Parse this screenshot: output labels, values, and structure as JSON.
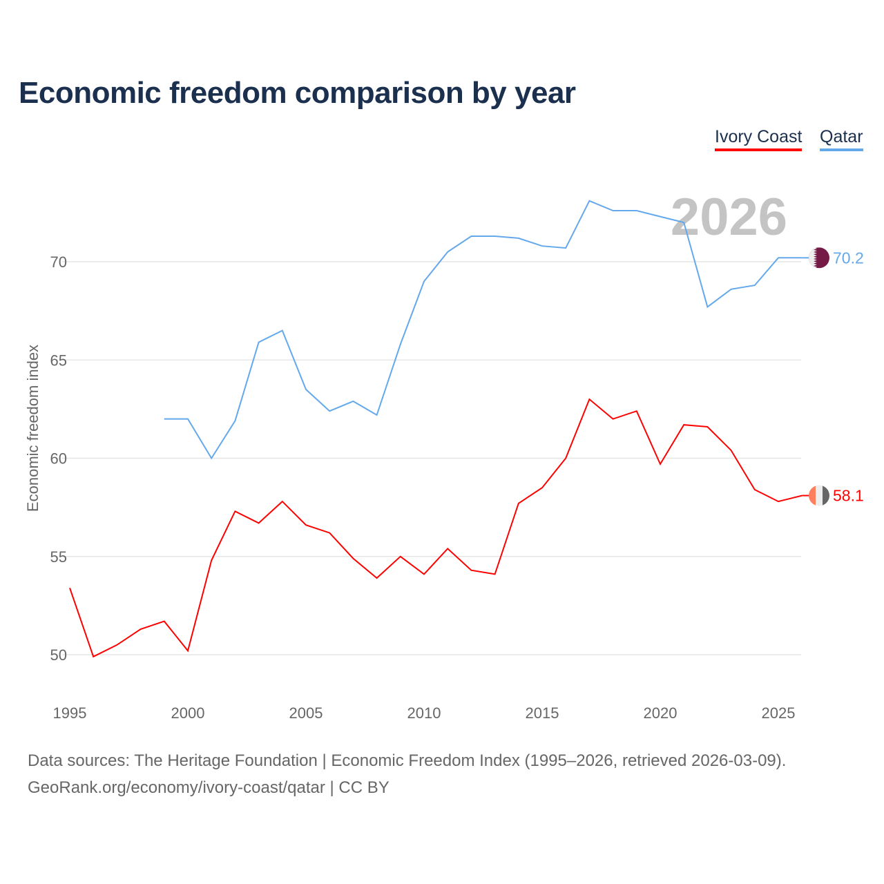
{
  "title": "Economic freedom comparison by year",
  "footer": {
    "sources": "Data sources: The Heritage Foundation | Economic Freedom Index (1995–2026, retrieved 2026-03-09).",
    "credit": "GeoRank.org/economy/ivory-coast/qatar | CC BY"
  },
  "chart_data": {
    "type": "line",
    "title": "Economic freedom comparison by year",
    "xlabel": "",
    "ylabel": "Economic freedom index",
    "xlim": [
      1995,
      2026
    ],
    "ylim": [
      50,
      73
    ],
    "x_ticks": [
      1995,
      2000,
      2005,
      2010,
      2015,
      2020,
      2025
    ],
    "y_ticks": [
      50,
      55,
      60,
      65,
      70
    ],
    "grid": true,
    "legend": "top-right",
    "year_watermark": "2026",
    "series": [
      {
        "name": "Ivory Coast",
        "color": "#ff0000",
        "end_label": "58.1",
        "x": [
          1995,
          1996,
          1997,
          1998,
          1999,
          2000,
          2001,
          2002,
          2003,
          2004,
          2005,
          2006,
          2007,
          2008,
          2009,
          2010,
          2011,
          2012,
          2013,
          2014,
          2015,
          2016,
          2017,
          2018,
          2019,
          2020,
          2021,
          2022,
          2023,
          2024,
          2025,
          2026
        ],
        "values": [
          53.4,
          49.9,
          50.5,
          51.3,
          51.7,
          50.2,
          54.8,
          57.3,
          56.7,
          57.8,
          56.6,
          56.2,
          54.9,
          53.9,
          55.0,
          54.1,
          55.4,
          54.3,
          54.1,
          57.7,
          58.5,
          60.0,
          63.0,
          62.0,
          62.4,
          59.7,
          61.7,
          61.6,
          60.4,
          58.4,
          57.8,
          58.1
        ]
      },
      {
        "name": "Qatar",
        "color": "#64a8ec",
        "end_label": "70.2",
        "x": [
          1999,
          2000,
          2001,
          2002,
          2003,
          2004,
          2005,
          2006,
          2007,
          2008,
          2009,
          2010,
          2011,
          2012,
          2013,
          2014,
          2015,
          2016,
          2017,
          2018,
          2019,
          2020,
          2021,
          2022,
          2023,
          2024,
          2025,
          2026
        ],
        "values": [
          62.0,
          62.0,
          60.0,
          61.9,
          65.9,
          66.5,
          63.5,
          62.4,
          62.9,
          62.2,
          65.8,
          69.0,
          70.5,
          71.3,
          71.3,
          71.2,
          70.8,
          70.7,
          73.1,
          72.6,
          72.6,
          72.3,
          72.0,
          67.7,
          68.6,
          68.8,
          70.2,
          70.2
        ]
      }
    ]
  }
}
